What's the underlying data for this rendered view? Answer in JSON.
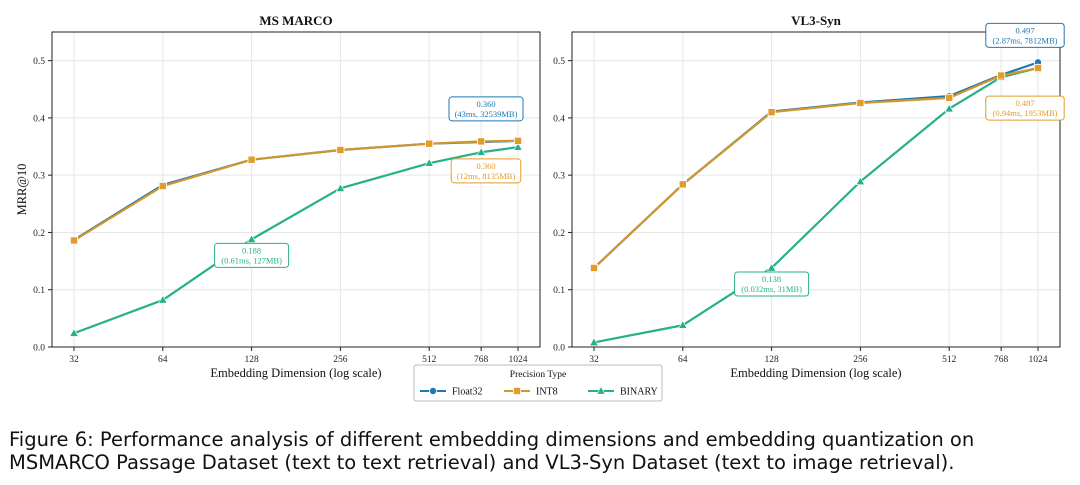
{
  "colors": {
    "float32": "#1f77b4",
    "int8": "#e39b2b",
    "binary": "#26b08a",
    "int8_line": "#cf972d",
    "grid": "#e6e6e6"
  },
  "legend": {
    "title": "Precision Type",
    "items": [
      "Float32",
      "INT8",
      "BINARY"
    ]
  },
  "caption": "Figure 6: Performance analysis of different embedding dimensions and embedding quantization on MSMARCO Passage Dataset (text to text retrieval) and VL3-Syn Dataset (text to image retrieval).",
  "chart_data": [
    {
      "type": "line",
      "title": "MS MARCO",
      "xlabel": "Embedding Dimension (log scale)",
      "ylabel": "MRR@10",
      "x": [
        32,
        64,
        128,
        256,
        512,
        768,
        1024
      ],
      "xticks": [
        "32",
        "64",
        "128",
        "256",
        "512",
        "768",
        "1024"
      ],
      "ylim": [
        0,
        0.55
      ],
      "yticks": [
        "0.0",
        "0.1",
        "0.2",
        "0.3",
        "0.4",
        "0.5"
      ],
      "grid": true,
      "series": [
        {
          "name": "Float32",
          "values": [
            0.187,
            0.283,
            0.327,
            0.344,
            0.355,
            0.358,
            0.36
          ]
        },
        {
          "name": "INT8",
          "values": [
            0.186,
            0.281,
            0.327,
            0.344,
            0.355,
            0.359,
            0.36
          ]
        },
        {
          "name": "BINARY",
          "values": [
            0.024,
            0.082,
            0.188,
            0.277,
            0.321,
            0.34,
            0.349
          ]
        }
      ],
      "annotations": [
        {
          "series": "Float32",
          "x": 1024,
          "value": "0.360",
          "detail": "(43ms, 32539MB)"
        },
        {
          "series": "INT8",
          "x": 1024,
          "value": "0.360",
          "detail": "(12ms, 8135MB)"
        },
        {
          "series": "BINARY",
          "x": 128,
          "value": "0.188",
          "detail": "(0.61ms, 127MB)"
        }
      ]
    },
    {
      "type": "line",
      "title": "VL3-Syn",
      "xlabel": "Embedding Dimension (log scale)",
      "ylabel": "",
      "x": [
        32,
        64,
        128,
        256,
        512,
        768,
        1024
      ],
      "xticks": [
        "32",
        "64",
        "128",
        "256",
        "512",
        "768",
        "1024"
      ],
      "ylim": [
        0,
        0.55
      ],
      "yticks": [
        "0.0",
        "0.1",
        "0.2",
        "0.3",
        "0.4",
        "0.5"
      ],
      "grid": true,
      "series": [
        {
          "name": "Float32",
          "values": [
            0.138,
            0.284,
            0.411,
            0.427,
            0.438,
            0.475,
            0.497
          ]
        },
        {
          "name": "INT8",
          "values": [
            0.138,
            0.284,
            0.41,
            0.426,
            0.435,
            0.474,
            0.487
          ]
        },
        {
          "name": "BINARY",
          "values": [
            0.008,
            0.038,
            0.138,
            0.289,
            0.416,
            0.471,
            0.487
          ]
        }
      ],
      "annotations": [
        {
          "series": "Float32",
          "x": 1024,
          "value": "0.497",
          "detail": "(2.87ms, 7812MB)"
        },
        {
          "series": "INT8",
          "x": 1024,
          "value": "0.487",
          "detail": "(0.94ms, 1953MB)"
        },
        {
          "series": "BINARY",
          "x": 128,
          "value": "0.138",
          "detail": "(0.032ms, 31MB)"
        }
      ]
    }
  ]
}
